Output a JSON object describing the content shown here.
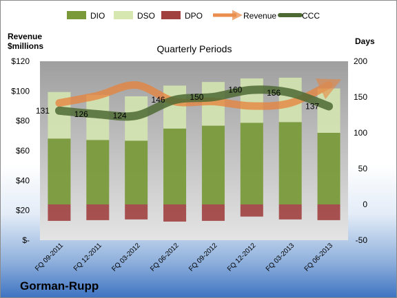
{
  "chart_data": {
    "type": "bar",
    "title": "Quarterly Periods",
    "company": "Gorman-Rupp",
    "left_axis_label": [
      "Revenue",
      "$millions"
    ],
    "right_axis_label": "Days",
    "left_axis": {
      "min": 0,
      "max": 120,
      "ticks": [
        0,
        20,
        40,
        60,
        80,
        100,
        120
      ],
      "tick_labels": [
        "$-",
        "$20",
        "$40",
        "$60",
        "$80",
        "$100",
        "$120"
      ]
    },
    "right_axis": {
      "min": -50,
      "max": 200,
      "ticks": [
        -50,
        0,
        50,
        100,
        150,
        200
      ],
      "tick_labels": [
        "-50",
        "0",
        "50",
        "100",
        "150",
        "200"
      ]
    },
    "categories": [
      "FQ 09-2011",
      "FQ 12-2011",
      "FQ 03-2012",
      "FQ 06-2012",
      "FQ 09-2012",
      "FQ 12-2012",
      "FQ 03-2013",
      "FQ 06-2013"
    ],
    "series": [
      {
        "name": "DIO",
        "kind": "stacked-bar",
        "axis": "right",
        "color": "#7a9a3a",
        "values": [
          92,
          90,
          89,
          106,
          110,
          114,
          115,
          100
        ]
      },
      {
        "name": "DSO",
        "kind": "stacked-bar",
        "axis": "right",
        "color": "#d6e8b0",
        "values": [
          65,
          63,
          62,
          60,
          61,
          62,
          62,
          62
        ]
      },
      {
        "name": "DPO",
        "kind": "bar-negative",
        "axis": "right",
        "color": "#a0403f",
        "values": [
          -23,
          -22,
          -21,
          -24,
          -23,
          -17,
          -21,
          -22
        ]
      },
      {
        "name": "Revenue",
        "kind": "line",
        "axis": "left",
        "color": "#e8823a",
        "values": [
          92,
          97,
          104,
          93,
          93,
          90,
          92,
          104
        ]
      },
      {
        "name": "CCC",
        "kind": "line",
        "axis": "right",
        "color": "#4e6a34",
        "values": [
          131,
          126,
          124,
          146,
          150,
          160,
          156,
          137
        ],
        "labels": [
          "131",
          "126",
          "124",
          "146",
          "150",
          "160",
          "156",
          "137"
        ]
      }
    ],
    "legend": {
      "position": "top",
      "entries": [
        "DIO",
        "DSO",
        "DPO",
        "Revenue",
        "CCC"
      ]
    },
    "grid": false
  }
}
